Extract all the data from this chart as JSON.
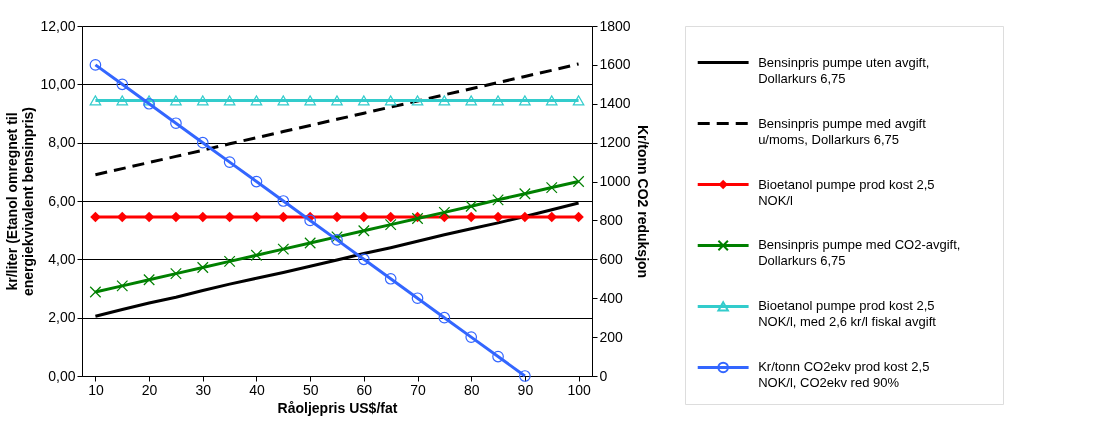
{
  "chart_data": {
    "type": "line",
    "xlabel": "Råoljepris US$/fat",
    "ylabel": "kr/liter (Etanol omregnet til\nenergiekvivalent bensinpris)",
    "y2label": "Kr/tonn CO2 reduksjon",
    "x": [
      10,
      15,
      20,
      25,
      30,
      35,
      40,
      45,
      50,
      55,
      60,
      65,
      70,
      75,
      80,
      85,
      90,
      95,
      100
    ],
    "xlim": [
      7.5,
      102.5
    ],
    "xticks": [
      10,
      20,
      30,
      40,
      50,
      60,
      70,
      80,
      90,
      100
    ],
    "ylim": [
      0,
      12
    ],
    "yticks": [
      {
        "value": 0,
        "label": "0,00"
      },
      {
        "value": 2,
        "label": "2,00"
      },
      {
        "value": 4,
        "label": "4,00"
      },
      {
        "value": 6,
        "label": "6,00"
      },
      {
        "value": 8,
        "label": "8,00"
      },
      {
        "value": 10,
        "label": "10,00"
      },
      {
        "value": 12,
        "label": "12,00"
      }
    ],
    "y2lim": [
      0,
      1800
    ],
    "y2ticks": [
      0,
      200,
      400,
      600,
      800,
      1000,
      1200,
      1400,
      1600,
      1800
    ],
    "grid": "y",
    "legend": "right",
    "series": [
      {
        "name": "Bensinpris pumpe uten avgift,\nDollarkurs 6,75",
        "color": "#000000",
        "marker": "none",
        "line_style": "solid",
        "values": [
          2.05,
          2.28,
          2.5,
          2.7,
          2.93,
          3.15,
          3.35,
          3.55,
          3.76,
          3.98,
          4.2,
          4.4,
          4.62,
          4.84,
          5.05,
          5.25,
          5.47,
          5.7,
          5.93
        ]
      },
      {
        "name": "Bensinpris pumpe med avgift\nu/moms, Dollarkurs 6,75",
        "color": "#000000",
        "marker": "none",
        "line_style": "dashed",
        "values": [
          6.9,
          7.11,
          7.32,
          7.53,
          7.74,
          7.96,
          8.17,
          8.38,
          8.59,
          8.8,
          9.01,
          9.22,
          9.43,
          9.64,
          9.85,
          10.06,
          10.27,
          10.48,
          10.7
        ]
      },
      {
        "name": "Bioetanol pumpe prod kost 2,5\nNOK/l",
        "color": "#ff0000",
        "marker": "diamond",
        "line_style": "solid",
        "values": [
          5.45,
          5.45,
          5.45,
          5.45,
          5.45,
          5.45,
          5.45,
          5.45,
          5.45,
          5.45,
          5.45,
          5.45,
          5.45,
          5.45,
          5.45,
          5.45,
          5.45,
          5.45,
          5.45
        ]
      },
      {
        "name": "Bensinpris pumpe med CO2-avgift,\nDollarkurs 6,75",
        "color": "#008000",
        "marker": "cross",
        "line_style": "solid",
        "values": [
          2.88,
          3.09,
          3.3,
          3.51,
          3.72,
          3.93,
          4.14,
          4.35,
          4.56,
          4.77,
          4.98,
          5.19,
          5.4,
          5.61,
          5.82,
          6.04,
          6.25,
          6.46,
          6.67
        ]
      },
      {
        "name": "Bioetanol pumpe prod kost 2,5\nNOK/l, med 2,6 kr/l fiskal avgift",
        "color": "#33cccc",
        "marker": "triangle",
        "line_style": "solid",
        "values": [
          9.45,
          9.45,
          9.45,
          9.45,
          9.45,
          9.45,
          9.45,
          9.45,
          9.45,
          9.45,
          9.45,
          9.45,
          9.45,
          9.45,
          9.45,
          9.45,
          9.45,
          9.45,
          9.45
        ]
      },
      {
        "name": "Kr/tonn CO2ekv prod kost 2,5\nNOK/l, CO2ekv red 90%",
        "color": "#3366ff",
        "marker": "circle",
        "line_style": "solid",
        "axis": "y2",
        "values": [
          1600,
          1500,
          1400,
          1300,
          1200,
          1100,
          1000,
          900,
          800,
          700,
          600,
          500,
          400,
          300,
          200,
          100,
          0,
          null,
          null
        ]
      }
    ]
  }
}
